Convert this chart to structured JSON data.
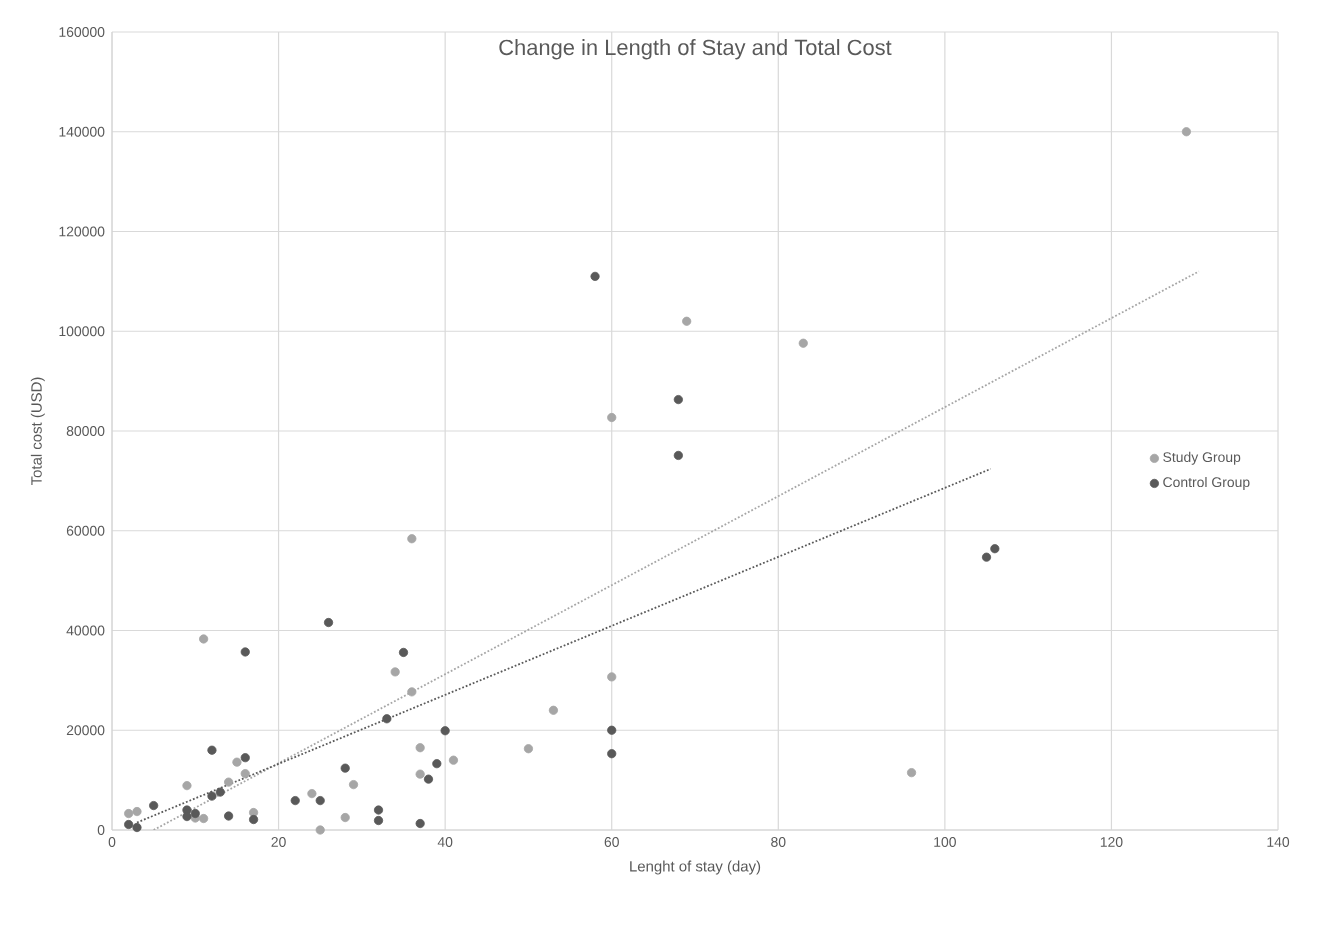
{
  "chart_data": {
    "type": "scatter",
    "title": "Change in Length of Stay and Total Cost",
    "xlabel": "Lenght of stay (day)",
    "ylabel": "Total cost (USD)",
    "xlim": [
      0,
      140
    ],
    "xticks": [
      0,
      20,
      40,
      60,
      80,
      100,
      120,
      140
    ],
    "ylim": [
      0,
      160000
    ],
    "yticks": [
      0,
      20000,
      40000,
      60000,
      80000,
      100000,
      120000,
      140000,
      160000
    ],
    "grid": true,
    "legend": "right",
    "series": [
      {
        "name": "Study Group",
        "marker": "circle",
        "color": "#a6a6a6",
        "x": [
          129,
          69,
          83,
          60,
          36,
          11,
          34,
          36,
          60,
          53,
          37,
          41,
          37,
          50,
          15,
          16,
          14,
          9,
          29,
          24,
          2,
          3,
          17,
          10,
          11,
          28,
          25,
          96
        ],
        "values": [
          140000,
          102000,
          97600,
          82700,
          58400,
          38300,
          31700,
          27700,
          30700,
          24000,
          16500,
          14000,
          11200,
          16300,
          13600,
          11300,
          9600,
          8900,
          9100,
          7300,
          3300,
          3700,
          3500,
          2400,
          2300,
          2500,
          0,
          11500
        ]
      },
      {
        "name": "Control Group",
        "marker": "circle",
        "color": "#595959",
        "x": [
          58,
          68,
          68,
          105,
          106,
          26,
          16,
          35,
          33,
          40,
          12,
          16,
          28,
          39,
          38,
          13,
          12,
          22,
          25,
          5,
          9,
          10,
          9,
          14,
          17,
          32,
          32,
          37,
          2,
          3,
          60,
          60
        ],
        "values": [
          111000,
          86300,
          75100,
          54700,
          56400,
          41600,
          35700,
          35600,
          22300,
          19900,
          16000,
          14500,
          12400,
          13300,
          10200,
          7600,
          6800,
          5900,
          5900,
          4900,
          4000,
          3300,
          2700,
          2800,
          2100,
          4000,
          1900,
          1300,
          1100,
          500,
          20000,
          15300
        ]
      },
      {
        "type": "line",
        "marker": "none",
        "line_style": "dotted",
        "color": "#a6a6a6",
        "x": [
          5,
          130.5
        ],
        "values": [
          0,
          112000
        ]
      },
      {
        "type": "line",
        "marker": "none",
        "line_style": "dotted",
        "color": "#595959",
        "x": [
          3,
          105.5
        ],
        "values": [
          1500,
          72400
        ]
      }
    ]
  }
}
